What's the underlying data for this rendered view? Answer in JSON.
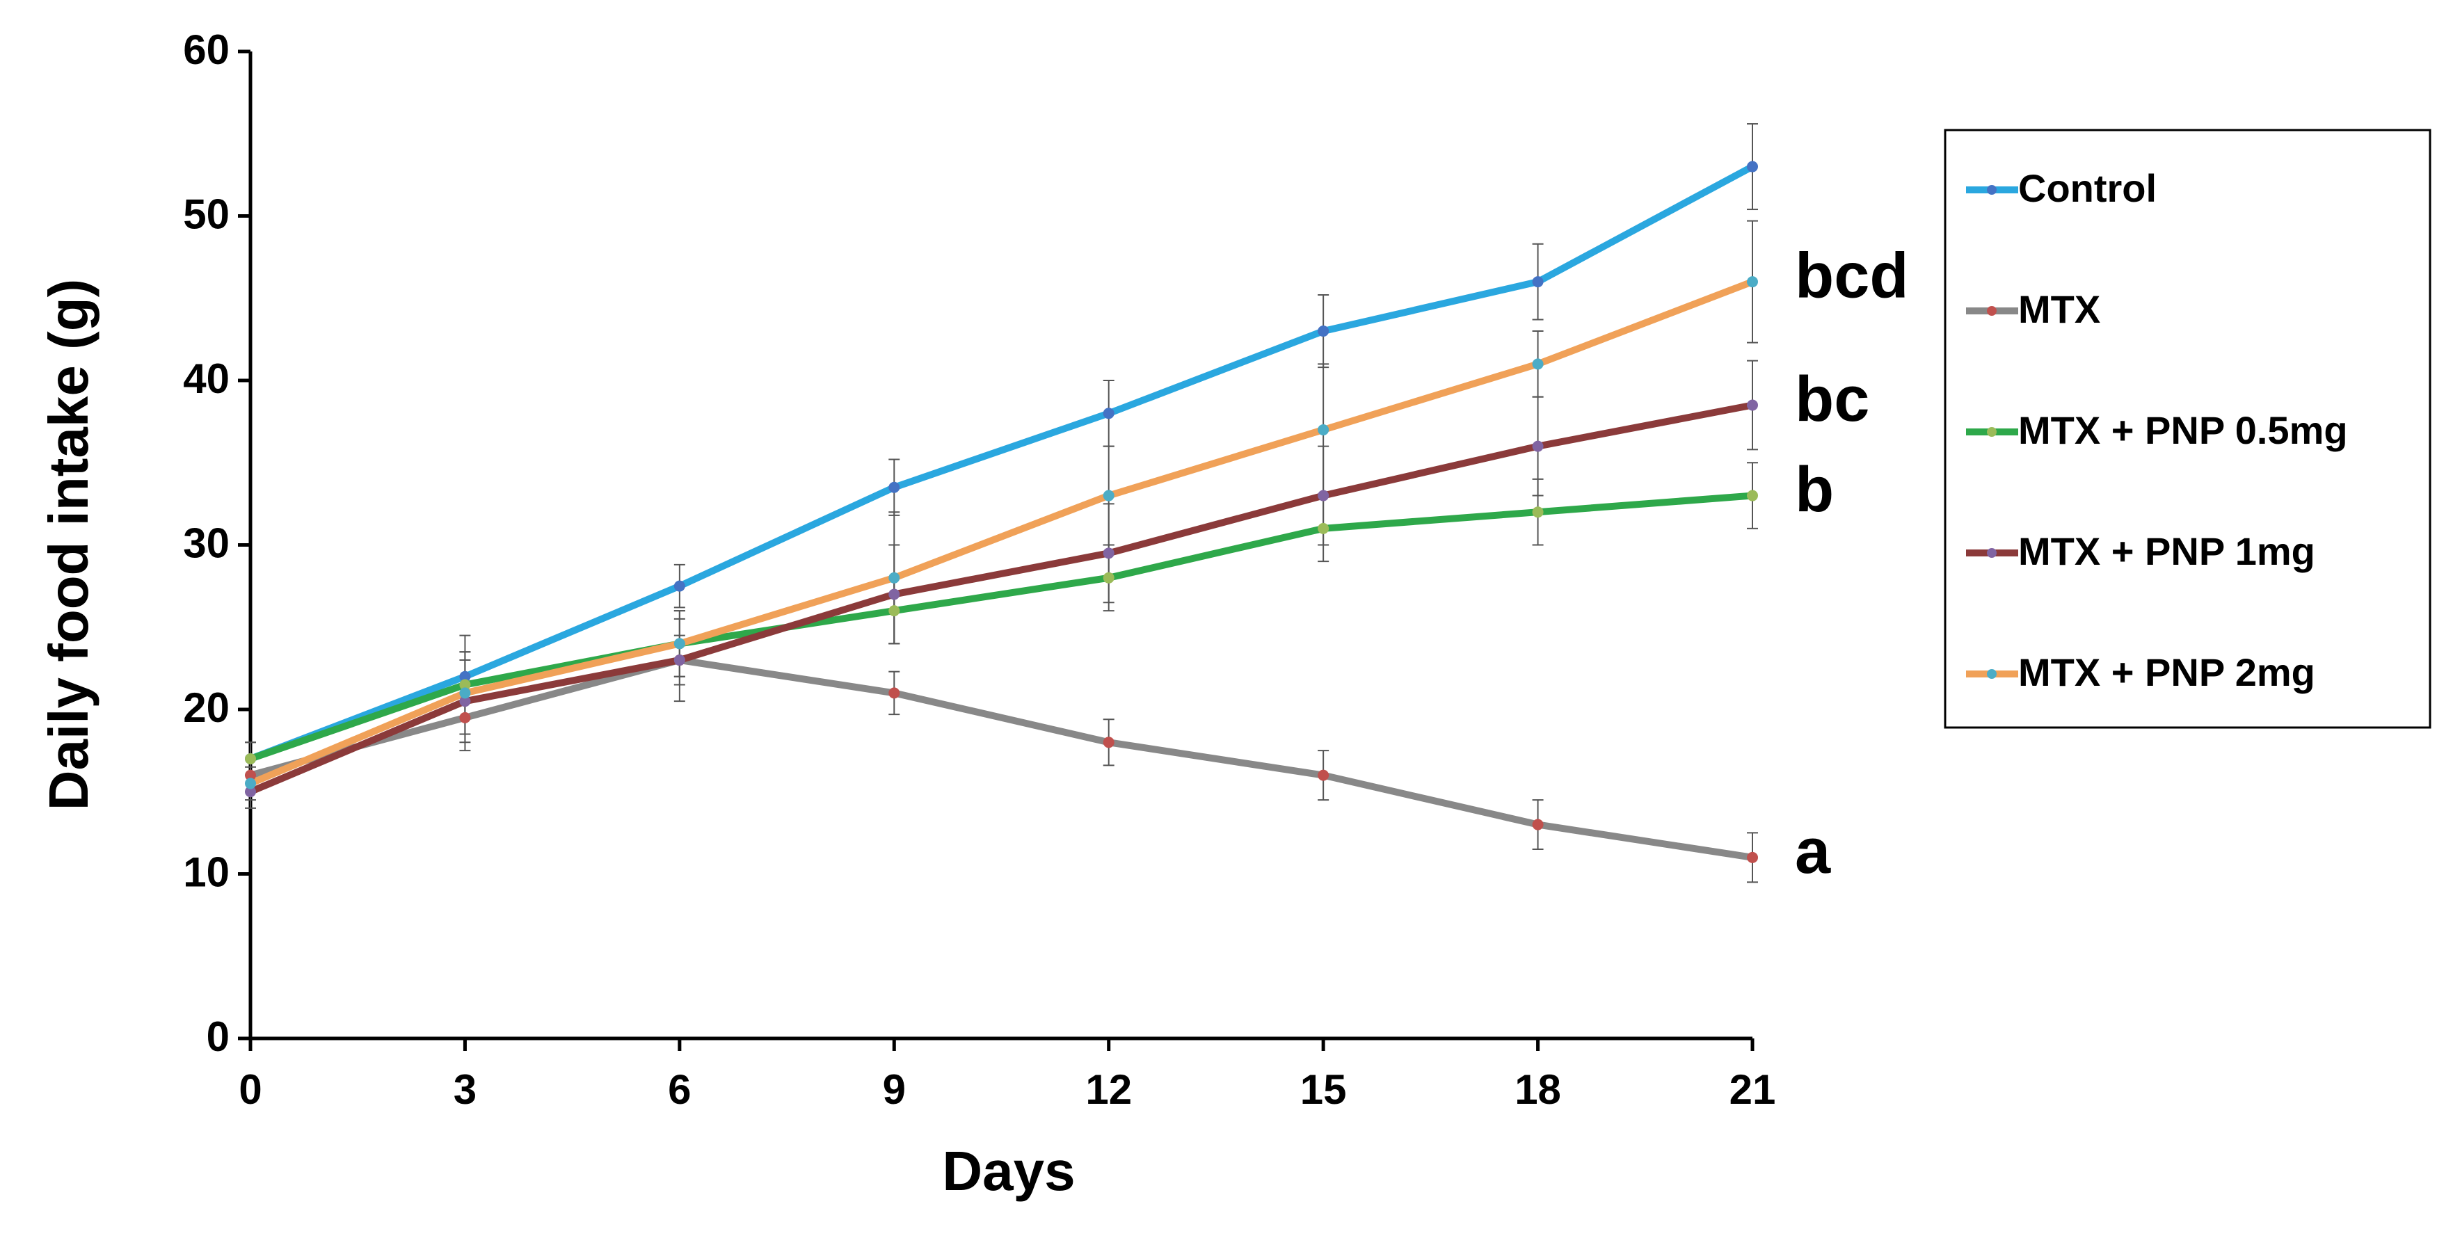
{
  "chart_data": {
    "type": "line",
    "x_label": "Days",
    "y_label": "Daily food intake (g)",
    "x": [
      0,
      3,
      6,
      9,
      12,
      15,
      18,
      21
    ],
    "series": [
      {
        "name": "Control",
        "color": "#2aa7df",
        "marker_color": "#4472c4",
        "values": [
          17,
          22,
          27.5,
          33.5,
          38,
          43,
          46,
          53
        ],
        "errors": [
          1,
          2.5,
          1.3,
          1.7,
          2,
          2.2,
          2.3,
          2.6
        ]
      },
      {
        "name": "MTX",
        "color": "#888888",
        "marker_color": "#c0504d",
        "values": [
          16,
          19.5,
          23,
          21,
          18,
          16,
          13,
          11
        ],
        "errors": [
          1,
          2,
          1.5,
          1.3,
          1.4,
          1.5,
          1.5,
          1.5
        ]
      },
      {
        "name": "MTX + PNP 0.5mg",
        "color": "#2ea84a",
        "marker_color": "#9bbb59",
        "values": [
          17,
          21.5,
          24,
          26,
          28,
          31,
          32,
          33
        ],
        "errors": [
          1,
          2,
          2,
          2,
          2,
          2,
          2,
          2
        ]
      },
      {
        "name": "MTX + PNP 1mg",
        "color": "#8b3a3a",
        "marker_color": "#8064a2",
        "values": [
          15,
          20.5,
          23,
          27,
          29.5,
          33,
          36,
          38.5
        ],
        "errors": [
          1,
          2.5,
          2.5,
          3,
          3,
          3,
          3,
          2.7
        ]
      },
      {
        "name": "MTX + PNP 2mg",
        "color": "#f0a158",
        "marker_color": "#4bacc6",
        "values": [
          15.5,
          21,
          24,
          28,
          33,
          37,
          41,
          46
        ],
        "errors": [
          1,
          2.5,
          2,
          4,
          3,
          4,
          2,
          3.7
        ]
      }
    ],
    "annotations": [
      "bcd",
      "bc",
      "b",
      "a"
    ],
    "xlim": [
      0,
      21
    ],
    "xticks": [
      0,
      3,
      6,
      9,
      12,
      15,
      18,
      21
    ],
    "ylim": [
      0,
      60
    ],
    "yticks": [
      0,
      10,
      20,
      30,
      40,
      50,
      60
    ],
    "grid": false,
    "legend": "right"
  }
}
